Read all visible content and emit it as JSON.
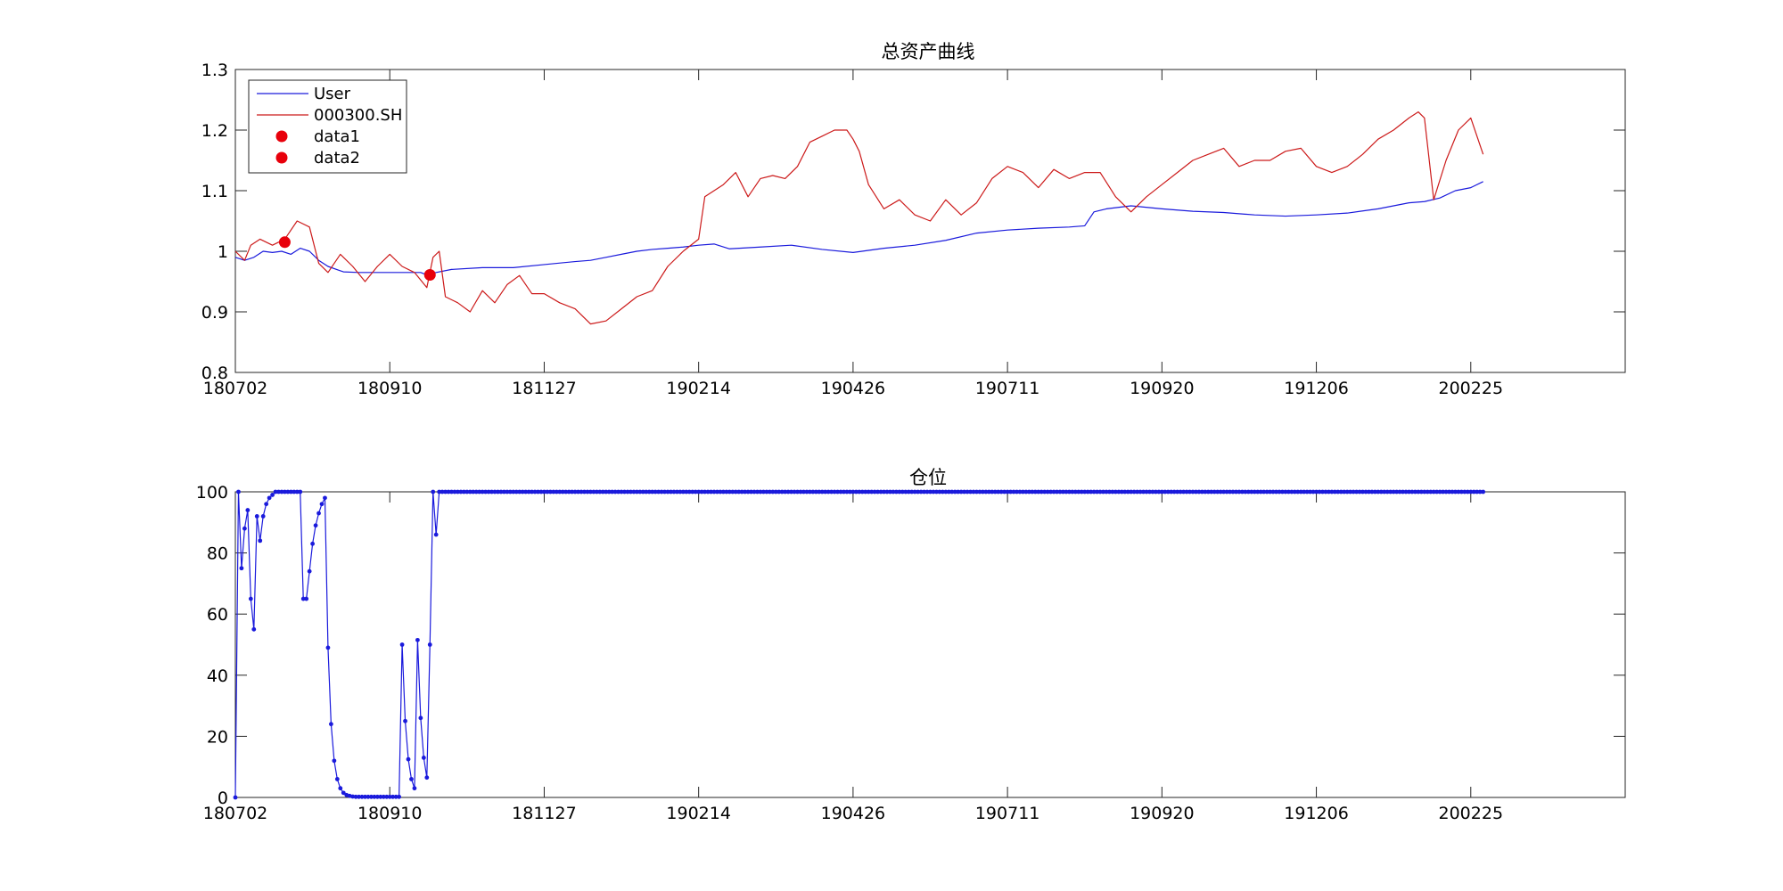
{
  "chart_data": [
    {
      "type": "line",
      "title": "总资产曲线",
      "xlabel": "",
      "ylabel": "",
      "x_range": [
        0,
        450
      ],
      "ylim": [
        0.8,
        1.3
      ],
      "yticks": [
        0.8,
        0.9,
        1,
        1.1,
        1.2,
        1.3
      ],
      "ytick_labels": [
        "0.8",
        "0.9",
        "1",
        "1.1",
        "1.2",
        "1.3"
      ],
      "xticks": [
        0,
        50,
        100,
        150,
        200,
        250,
        300,
        350,
        400
      ],
      "xtick_labels": [
        "180702",
        "180910",
        "181127",
        "190214",
        "190426",
        "190711",
        "190920",
        "191206",
        "200225"
      ],
      "grid": false,
      "legend": "top-left",
      "series": [
        {
          "name": "User",
          "color": "#1a1adc",
          "x": [
            0,
            3,
            6,
            9,
            12,
            15,
            18,
            21,
            24,
            27,
            30,
            35,
            40,
            50,
            60,
            62,
            65,
            70,
            80,
            90,
            100,
            110,
            115,
            120,
            125,
            130,
            135,
            140,
            145,
            150,
            155,
            160,
            170,
            180,
            190,
            200,
            210,
            220,
            230,
            240,
            250,
            260,
            270,
            275,
            278,
            282,
            290,
            300,
            310,
            320,
            330,
            340,
            350,
            360,
            370,
            380,
            385,
            390,
            395,
            400,
            404
          ],
          "values": [
            0.99,
            0.985,
            0.99,
            1.0,
            0.998,
            1.0,
            0.995,
            1.005,
            1.0,
            0.985,
            0.975,
            0.966,
            0.965,
            0.965,
            0.965,
            0.961,
            0.965,
            0.97,
            0.973,
            0.973,
            0.978,
            0.983,
            0.985,
            0.99,
            0.995,
            1.0,
            1.003,
            1.005,
            1.007,
            1.01,
            1.012,
            1.004,
            1.007,
            1.01,
            1.003,
            0.998,
            1.005,
            1.01,
            1.018,
            1.03,
            1.035,
            1.038,
            1.04,
            1.042,
            1.065,
            1.07,
            1.075,
            1.07,
            1.066,
            1.064,
            1.06,
            1.058,
            1.06,
            1.063,
            1.07,
            1.08,
            1.082,
            1.088,
            1.1,
            1.105,
            1.115
          ]
        },
        {
          "name": "000300.SH",
          "color": "#cc1a1a",
          "x": [
            0,
            3,
            5,
            8,
            12,
            16,
            20,
            24,
            27,
            30,
            34,
            38,
            42,
            46,
            50,
            54,
            58,
            62,
            64,
            66,
            68,
            72,
            76,
            80,
            84,
            88,
            92,
            96,
            100,
            105,
            110,
            115,
            120,
            125,
            130,
            135,
            140,
            145,
            150,
            152,
            155,
            158,
            162,
            166,
            170,
            174,
            178,
            182,
            186,
            190,
            194,
            198,
            200,
            202,
            205,
            210,
            215,
            220,
            225,
            230,
            235,
            240,
            245,
            250,
            255,
            260,
            265,
            270,
            275,
            280,
            285,
            290,
            295,
            300,
            305,
            310,
            315,
            320,
            325,
            330,
            335,
            340,
            345,
            350,
            355,
            360,
            365,
            370,
            375,
            380,
            383,
            385,
            388,
            392,
            396,
            400,
            404
          ],
          "values": [
            1.0,
            0.985,
            1.01,
            1.02,
            1.01,
            1.02,
            1.05,
            1.04,
            0.98,
            0.965,
            0.995,
            0.975,
            0.95,
            0.975,
            0.995,
            0.975,
            0.965,
            0.94,
            0.99,
            1.0,
            0.925,
            0.915,
            0.9,
            0.935,
            0.915,
            0.945,
            0.96,
            0.93,
            0.93,
            0.915,
            0.905,
            0.88,
            0.885,
            0.905,
            0.925,
            0.935,
            0.975,
            1.0,
            1.02,
            1.09,
            1.1,
            1.11,
            1.13,
            1.09,
            1.12,
            1.125,
            1.12,
            1.14,
            1.18,
            1.19,
            1.2,
            1.2,
            1.185,
            1.165,
            1.11,
            1.07,
            1.085,
            1.06,
            1.05,
            1.085,
            1.06,
            1.08,
            1.12,
            1.14,
            1.13,
            1.105,
            1.135,
            1.12,
            1.13,
            1.13,
            1.09,
            1.065,
            1.09,
            1.11,
            1.13,
            1.15,
            1.16,
            1.17,
            1.14,
            1.15,
            1.15,
            1.165,
            1.17,
            1.14,
            1.13,
            1.14,
            1.16,
            1.185,
            1.2,
            1.22,
            1.23,
            1.22,
            1.085,
            1.15,
            1.2,
            1.22,
            1.16
          ]
        },
        {
          "name": "data1",
          "color": "#e8000b",
          "marker": "circle",
          "x": [
            16
          ],
          "values": [
            1.015
          ]
        },
        {
          "name": "data2",
          "color": "#e8000b",
          "marker": "circle",
          "x": [
            63
          ],
          "values": [
            0.961
          ]
        }
      ]
    },
    {
      "type": "line",
      "title": "仓位",
      "xlabel": "",
      "ylabel": "",
      "x_range": [
        0,
        450
      ],
      "ylim": [
        0,
        100
      ],
      "yticks": [
        0,
        20,
        40,
        60,
        80,
        100
      ],
      "ytick_labels": [
        "0",
        "20",
        "40",
        "60",
        "80",
        "100"
      ],
      "xticks": [
        0,
        50,
        100,
        150,
        200,
        250,
        300,
        350,
        400
      ],
      "xtick_labels": [
        "180702",
        "180910",
        "181127",
        "190214",
        "190426",
        "190711",
        "190920",
        "191206",
        "200225"
      ],
      "grid": false,
      "series": [
        {
          "color": "#1a1adc",
          "marker": "dot",
          "x": [
            0,
            1,
            2,
            3,
            4,
            5,
            6,
            7,
            8,
            9,
            10,
            11,
            12,
            13,
            14,
            15,
            16,
            17,
            18,
            19,
            20,
            21,
            22,
            23,
            24,
            25,
            26,
            27,
            28,
            29,
            30,
            31,
            32,
            33,
            34,
            35,
            36,
            37,
            38,
            39,
            40,
            41,
            42,
            43,
            44,
            45,
            46,
            47,
            48,
            49,
            50,
            51,
            52,
            53,
            54,
            55,
            56,
            57,
            58,
            59,
            60,
            61,
            62,
            63,
            64,
            65,
            66,
            67,
            68,
            69
          ],
          "values": [
            0,
            100,
            75,
            88,
            94,
            65,
            55,
            92,
            84,
            92,
            96,
            98,
            99,
            100,
            100,
            100,
            100,
            100,
            100,
            100,
            100,
            100,
            65,
            65,
            74,
            83,
            89,
            93,
            96,
            98,
            49,
            24,
            12,
            6,
            3,
            1.5,
            0.8,
            0.5,
            0.3,
            0.2,
            0.2,
            0.2,
            0.2,
            0.2,
            0.2,
            0.2,
            0.2,
            0.2,
            0.2,
            0.2,
            0.2,
            0.2,
            0.2,
            0.2,
            50,
            25,
            12.5,
            6,
            3,
            51.5,
            26,
            13,
            6.5,
            50,
            100,
            86,
            100,
            100,
            100,
            100
          ],
          "flat_from_x": 70,
          "flat_to_x": 404,
          "flat_value": 100
        }
      ]
    }
  ]
}
